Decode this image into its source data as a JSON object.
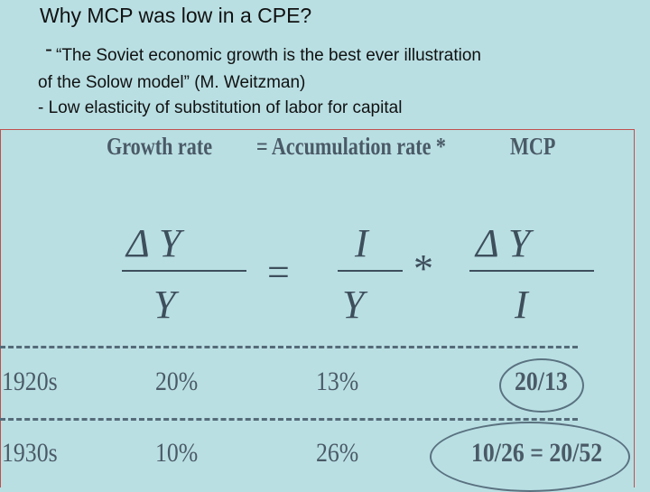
{
  "title": "Why MCP was low in a CPE?",
  "quote_lead": "-",
  "quote_line1": "“The Soviet economic growth is the best ever illustration",
  "quote_line2": "of the  Solow  model” (M. Weitzman)",
  "point2": "- Low elasticity of substitution of labor for capital",
  "heading": {
    "growth_rate": "Growth rate",
    "eq": "= Accumulation rate  *",
    "mcp": "MCP"
  },
  "formula": {
    "lhs_num": "Δ  Y",
    "lhs_den": "Y",
    "equals": "=",
    "mid_num": "I",
    "mid_den": "Y",
    "times": "*",
    "rhs_num": "Δ  Y",
    "rhs_den": "I"
  },
  "rows": [
    {
      "period": "1920s",
      "growth": "20%",
      "accum": "13%",
      "mcp": "20/13"
    },
    {
      "period": "1930s",
      "growth": "10%",
      "accum": "26%",
      "mcp": "10/26 = 20/52"
    }
  ],
  "colors": {
    "background": "#b9dfe3",
    "frame": "#c0504d",
    "ink": "#3e4f5c"
  }
}
